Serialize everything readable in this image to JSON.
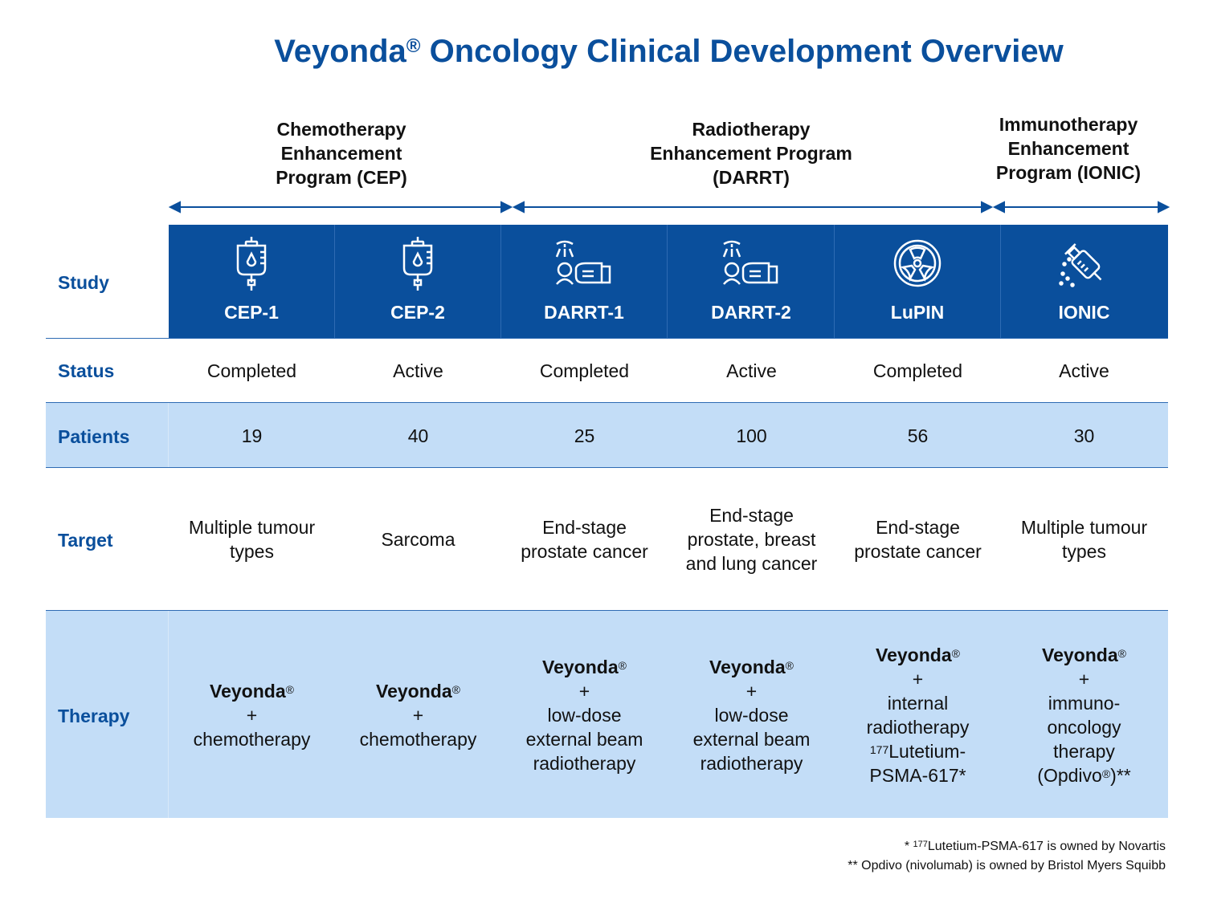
{
  "title": {
    "main": "Veyonda",
    "reg": "®",
    "rest": " Oncology Clinical Development Overview"
  },
  "programs": [
    {
      "line1": "Chemotherapy",
      "line2": "Enhancement",
      "line3": "Program (CEP)"
    },
    {
      "line1": "Radiotherapy",
      "line2": "Enhancement Program",
      "line3": "(DARRT)"
    },
    {
      "line1": "Immunotherapy",
      "line2": "Enhancement",
      "line3": "Program (IONIC)"
    }
  ],
  "row_labels": {
    "study": "Study",
    "status": "Status",
    "patients": "Patients",
    "target": "Target",
    "therapy": "Therapy"
  },
  "studies": [
    {
      "name": "CEP-1",
      "icon": "iv-bag-icon",
      "status": "Completed",
      "patients": "19",
      "target": [
        "Multiple tumour",
        "types"
      ],
      "therapy": {
        "drug": "Veyonda",
        "reg": "®",
        "plus": "+",
        "lines": [
          "chemotherapy"
        ]
      }
    },
    {
      "name": "CEP-2",
      "icon": "iv-bag-icon",
      "status": "Active",
      "patients": "40",
      "target": [
        "Sarcoma"
      ],
      "therapy": {
        "drug": "Veyonda",
        "reg": "®",
        "plus": "+",
        "lines": [
          "chemotherapy"
        ]
      }
    },
    {
      "name": "DARRT-1",
      "icon": "radiotherapy-machine-icon",
      "status": "Completed",
      "patients": "25",
      "target": [
        "End-stage",
        "prostate cancer"
      ],
      "therapy": {
        "drug": "Veyonda",
        "reg": "®",
        "plus": "+",
        "lines": [
          "low-dose",
          "external beam",
          "radiotherapy"
        ]
      }
    },
    {
      "name": "DARRT-2",
      "icon": "radiotherapy-machine-icon",
      "status": "Active",
      "patients": "100",
      "target": [
        "End-stage",
        "prostate, breast",
        "and lung cancer"
      ],
      "therapy": {
        "drug": "Veyonda",
        "reg": "®",
        "plus": "+",
        "lines": [
          "low-dose",
          "external beam",
          "radiotherapy"
        ]
      }
    },
    {
      "name": "LuPIN",
      "icon": "radiation-icon",
      "status": "Completed",
      "patients": "56",
      "target": [
        "End-stage",
        "prostate cancer"
      ],
      "therapy": {
        "drug": "Veyonda",
        "reg": "®",
        "plus": "+",
        "lines": [
          "internal",
          "radiotherapy"
        ],
        "iso_sup": "177",
        "iso_rest": "Lutetium-",
        "last": "PSMA-617*"
      }
    },
    {
      "name": "IONIC",
      "icon": "syringe-icon",
      "status": "Active",
      "patients": "30",
      "target": [
        "Multiple tumour",
        "types"
      ],
      "therapy": {
        "drug": "Veyonda",
        "reg": "®",
        "plus": "+",
        "lines": [
          "immuno-",
          "oncology",
          "therapy"
        ],
        "op_pre": "(Opdivo",
        "op_reg": "®",
        "op_post": ")**"
      }
    }
  ],
  "footnotes": {
    "f1_pre": "* ",
    "f1_sup": "177",
    "f1_rest": "Lutetium-PSMA-617 is owned by Novartis",
    "f2": "** Opdivo (nivolumab) is owned by Bristol Myers Squibb"
  },
  "colors": {
    "brand": "#0a4f9c",
    "light_band": "#c3ddf7"
  }
}
